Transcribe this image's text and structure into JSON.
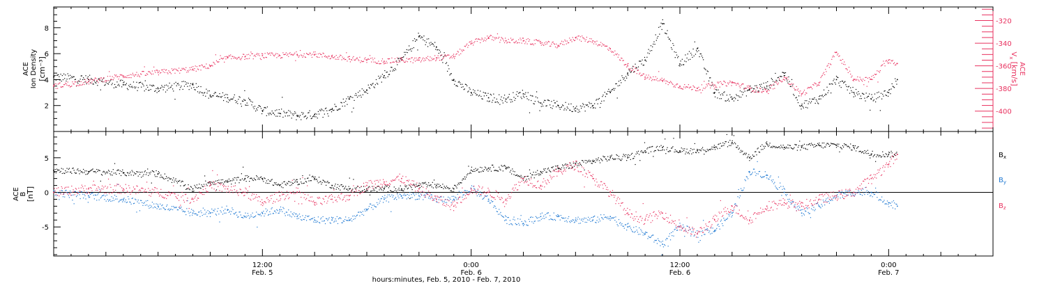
{
  "xaxis": {
    "label": "hours:minutes, Feb.  5, 2010 - Feb.  7, 2010",
    "ticks": [
      {
        "hour": 12,
        "time": "12:00",
        "date": "Feb. 5"
      },
      {
        "hour": 24,
        "time": "0:00",
        "date": "Feb. 6"
      },
      {
        "hour": 36,
        "time": "12:00",
        "date": "Feb. 6"
      },
      {
        "hour": 48,
        "time": "0:00",
        "date": "Feb. 7"
      }
    ],
    "range_hours": [
      0,
      54
    ]
  },
  "colors": {
    "black": "#000000",
    "pink": "#e8305e",
    "blue": "#1e78d2"
  },
  "chart_data": [
    {
      "type": "scatter",
      "panel": "top",
      "left_axis": {
        "label_line1": "ACE",
        "label_line2": "Ion Density",
        "unit": "[cm⁻³]",
        "ticks": [
          "2",
          "4",
          "6",
          "8"
        ],
        "ylim": [
          0,
          9.6
        ]
      },
      "right_axis": {
        "label_line1": "ACE",
        "label_line2": "V",
        "label_sub": "x",
        "unit": "[km/s]",
        "ticks": [
          "-320",
          "-340",
          "-360",
          "-380",
          "-400"
        ],
        "ylim": [
          -418,
          -308
        ]
      },
      "series": [
        {
          "color": "black",
          "axis": "left",
          "x": [
            0,
            2,
            4,
            6,
            8,
            9,
            10,
            11,
            12,
            13,
            14,
            15,
            16,
            17,
            18,
            19,
            20,
            21,
            22,
            23,
            24,
            25,
            26,
            27,
            28,
            29,
            30,
            31,
            32,
            33,
            34,
            35,
            36,
            37,
            38,
            39,
            40,
            41,
            42,
            43,
            44,
            45,
            46,
            47,
            48,
            48.5
          ],
          "y": [
            4.2,
            4.0,
            3.6,
            3.3,
            3.6,
            2.8,
            2.6,
            2.4,
            1.6,
            1.4,
            1.2,
            1.3,
            1.7,
            2.5,
            3.2,
            4.3,
            5.5,
            7.3,
            6.5,
            4.0,
            3.0,
            2.6,
            2.5,
            2.9,
            2.2,
            2.0,
            1.8,
            2.0,
            3.0,
            4.5,
            5.5,
            8.3,
            5.2,
            6.4,
            3.0,
            2.5,
            3.2,
            3.5,
            4.5,
            2.0,
            2.5,
            4.0,
            3.0,
            2.5,
            3.0,
            4.0
          ]
        },
        {
          "color": "pink",
          "axis": "right",
          "x": [
            0,
            2,
            4,
            6,
            8,
            9,
            10,
            11,
            12,
            13,
            14,
            15,
            16,
            17,
            18,
            19,
            20,
            21,
            22,
            23,
            24,
            25,
            26,
            27,
            28,
            29,
            30,
            31,
            32,
            33,
            34,
            35,
            36,
            37,
            38,
            39,
            40,
            41,
            42,
            43,
            44,
            45,
            46,
            47,
            48,
            48.5
          ],
          "y": [
            -378,
            -374,
            -369,
            -366,
            -363,
            -360,
            -353,
            -352,
            -351,
            -351,
            -350,
            -350,
            -352,
            -354,
            -355,
            -356,
            -355,
            -355,
            -353,
            -352,
            -340,
            -335,
            -338,
            -338,
            -340,
            -342,
            -335,
            -338,
            -345,
            -360,
            -370,
            -373,
            -378,
            -380,
            -377,
            -375,
            -380,
            -383,
            -370,
            -385,
            -375,
            -348,
            -372,
            -372,
            -355,
            -358
          ]
        }
      ]
    },
    {
      "type": "scatter",
      "panel": "bottom",
      "left_axis": {
        "label_line1": "ACE",
        "label_line2": "B",
        "unit": "[nT]",
        "ticks": [
          "-5",
          "0",
          "5"
        ],
        "ylim": [
          -9.2,
          8.8
        ]
      },
      "zero_line": true,
      "series": [
        {
          "name": "B",
          "sub": "x",
          "color": "black",
          "x": [
            0,
            2,
            4,
            6,
            8,
            9,
            10,
            11,
            12,
            13,
            14,
            15,
            16,
            17,
            18,
            19,
            20,
            21,
            22,
            23,
            24,
            25,
            26,
            27,
            28,
            29,
            30,
            31,
            32,
            33,
            34,
            35,
            36,
            37,
            38,
            39,
            40,
            41,
            42,
            43,
            44,
            45,
            46,
            47,
            48,
            48.5
          ],
          "y": [
            3.2,
            3.0,
            2.8,
            2.7,
            0.5,
            1.5,
            1.5,
            2.0,
            2.0,
            1.0,
            1.5,
            2.0,
            1.0,
            0.5,
            0.5,
            0.5,
            0.5,
            1.0,
            1.0,
            0.5,
            3.2,
            3.5,
            3.5,
            2.0,
            3.0,
            3.5,
            4.0,
            4.5,
            5.0,
            5.0,
            6.0,
            6.5,
            6.0,
            6.0,
            6.5,
            7.2,
            5.0,
            7.0,
            6.5,
            6.5,
            6.8,
            6.8,
            6.5,
            5.5,
            5.5,
            5.5
          ]
        },
        {
          "name": "B",
          "sub": "y",
          "color": "blue",
          "x": [
            0,
            2,
            4,
            6,
            8,
            9,
            10,
            11,
            12,
            13,
            14,
            15,
            16,
            17,
            18,
            19,
            20,
            21,
            22,
            23,
            24,
            25,
            26,
            27,
            28,
            29,
            30,
            31,
            32,
            33,
            34,
            35,
            36,
            37,
            38,
            39,
            40,
            41,
            42,
            43,
            44,
            45,
            46,
            47,
            48,
            48.5
          ],
          "y": [
            0.0,
            -0.5,
            -1.0,
            -2.0,
            -3.0,
            -3.0,
            -2.5,
            -3.5,
            -3.0,
            -2.5,
            -3.5,
            -4.0,
            -4.0,
            -4.0,
            -2.5,
            -1.0,
            -0.5,
            -0.5,
            -1.0,
            -1.0,
            0.5,
            -1.0,
            -4.0,
            -4.5,
            -3.5,
            -3.5,
            -4.0,
            -4.0,
            -3.5,
            -5.0,
            -6.0,
            -7.5,
            -5.0,
            -6.0,
            -5.5,
            -3.0,
            3.0,
            2.5,
            0.0,
            -3.0,
            -2.0,
            -0.5,
            0.0,
            0.0,
            -1.5,
            -2.0
          ]
        },
        {
          "name": "B",
          "sub": "z",
          "color": "pink",
          "x": [
            0,
            2,
            4,
            6,
            8,
            9,
            10,
            11,
            12,
            13,
            14,
            15,
            16,
            17,
            18,
            19,
            20,
            21,
            22,
            23,
            24,
            25,
            26,
            27,
            28,
            29,
            30,
            31,
            32,
            33,
            34,
            35,
            36,
            37,
            38,
            39,
            40,
            41,
            42,
            43,
            44,
            45,
            46,
            47,
            48,
            48.5
          ],
          "y": [
            0.0,
            0.5,
            0.5,
            0.0,
            -1.0,
            1.0,
            0.5,
            0.0,
            -1.5,
            -0.5,
            0.0,
            -1.5,
            -1.0,
            -0.5,
            1.0,
            1.5,
            2.0,
            0.5,
            -1.0,
            -2.0,
            0.5,
            0.0,
            -1.0,
            2.0,
            1.0,
            3.0,
            4.0,
            2.0,
            0.0,
            -3.0,
            -4.0,
            -3.0,
            -5.0,
            -6.0,
            -4.0,
            -2.0,
            -4.0,
            -2.0,
            -1.5,
            -2.0,
            -1.0,
            -0.5,
            0.0,
            2.0,
            4.0,
            5.5
          ]
        }
      ]
    }
  ]
}
